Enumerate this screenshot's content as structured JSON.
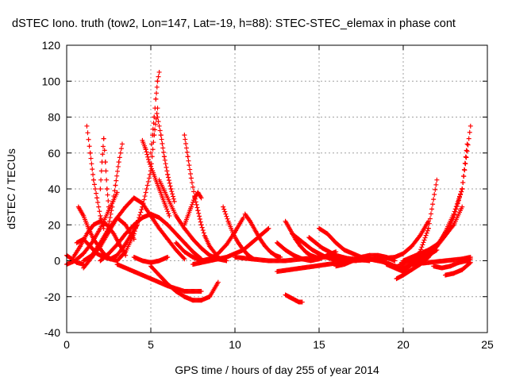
{
  "chart_data": {
    "type": "scatter",
    "title": "dSTEC Iono. truth (tow2, Lon=147, Lat=-19, h=88): STEC-STEC_elemax in phase cont",
    "xlabel": "GPS time / hours of day 255 of year 2014",
    "ylabel": "dSTEC  / TECUs",
    "xlim": [
      0,
      25
    ],
    "ylim": [
      -40,
      120
    ],
    "xticks": [
      "0",
      "5",
      "10",
      "15",
      "20",
      "25"
    ],
    "yticks": [
      "-40",
      "-20",
      "0",
      "20",
      "40",
      "60",
      "80",
      "100",
      "120"
    ],
    "grid": true,
    "marker": "plus",
    "color": "#ff0000",
    "series": [
      {
        "x": [
          0.0,
          0.3,
          0.6,
          1.0
        ],
        "y": [
          3,
          1,
          -1,
          -2
        ]
      },
      {
        "x": [
          0.0,
          0.5,
          1.0,
          1.5,
          2.0,
          2.5,
          3.0
        ],
        "y": [
          -2,
          0,
          4,
          10,
          18,
          28,
          38
        ]
      },
      {
        "x": [
          0.4,
          0.8,
          1.2,
          1.6,
          2.0,
          2.4,
          2.8,
          3.2,
          3.5
        ],
        "y": [
          2,
          8,
          15,
          20,
          22,
          20,
          15,
          8,
          3
        ]
      },
      {
        "x": [
          0.6,
          1.0,
          1.4,
          1.8,
          2.2,
          2.6,
          3.0,
          3.4,
          3.8,
          4.2
        ],
        "y": [
          10,
          12,
          8,
          4,
          2,
          1,
          3,
          8,
          14,
          20
        ]
      },
      {
        "x": [
          0.7,
          1.0,
          1.3,
          1.6,
          1.9,
          2.2,
          2.6,
          3.0
        ],
        "y": [
          30,
          25,
          18,
          12,
          8,
          4,
          1,
          0
        ]
      },
      {
        "x": [
          1.2,
          1.4,
          1.6,
          1.8,
          2.0,
          2.2
        ],
        "y": [
          75,
          60,
          45,
          35,
          25,
          18
        ]
      },
      {
        "x": [
          1.0,
          1.5,
          2.0,
          2.5,
          3.0,
          3.5,
          4.0
        ],
        "y": [
          0,
          3,
          10,
          18,
          24,
          20,
          12
        ]
      },
      {
        "x": [
          2.0,
          2.1,
          2.2,
          2.3,
          2.4,
          2.5
        ],
        "y": [
          40,
          55,
          68,
          55,
          40,
          30
        ]
      },
      {
        "x": [
          2.5,
          2.7,
          2.9,
          3.1,
          3.3
        ],
        "y": [
          20,
          30,
          42,
          55,
          65
        ]
      },
      {
        "x": [
          1.0,
          1.5,
          2.0,
          2.5,
          3.0,
          3.5,
          4.0,
          4.5,
          5.0,
          5.5,
          6.0,
          6.5,
          7.0
        ],
        "y": [
          -4,
          2,
          8,
          16,
          24,
          30,
          35,
          32,
          25,
          18,
          12,
          6,
          1
        ]
      },
      {
        "x": [
          2.0,
          2.5,
          3.0,
          3.5,
          4.0,
          4.5,
          5.0,
          5.5,
          6.0,
          6.5,
          7.0,
          7.5,
          8.0
        ],
        "y": [
          0,
          4,
          9,
          15,
          20,
          24,
          26,
          24,
          20,
          15,
          10,
          5,
          1
        ]
      },
      {
        "x": [
          4.5,
          4.7,
          4.9,
          5.1,
          5.3,
          5.5,
          5.7,
          5.9,
          6.1
        ],
        "y": [
          67,
          62,
          55,
          50,
          45,
          40,
          35,
          30,
          25
        ]
      },
      {
        "x": [
          5.0,
          5.1,
          5.2,
          5.3,
          5.4,
          5.5
        ],
        "y": [
          60,
          70,
          80,
          90,
          100,
          105
        ]
      },
      {
        "x": [
          3.0,
          3.5,
          4.0,
          4.5,
          5.0,
          5.2,
          5.4
        ],
        "y": [
          0,
          5,
          15,
          30,
          50,
          70,
          85
        ]
      },
      {
        "x": [
          5.4,
          5.6,
          5.8,
          6.0,
          6.2,
          6.4
        ],
        "y": [
          80,
          70,
          58,
          48,
          40,
          33
        ]
      },
      {
        "x": [
          5.5,
          6.0,
          6.5,
          7.0,
          7.5,
          8.0,
          8.5,
          9.0,
          9.5
        ],
        "y": [
          45,
          35,
          25,
          18,
          12,
          7,
          3,
          1,
          0
        ]
      },
      {
        "x": [
          7.0,
          7.2,
          7.4,
          7.6,
          7.8,
          8.0,
          8.2,
          8.5,
          9.0
        ],
        "y": [
          70,
          58,
          46,
          36,
          28,
          20,
          14,
          8,
          2
        ]
      },
      {
        "x": [
          6.5,
          7.0,
          7.5,
          8.0,
          8.5,
          9.0,
          9.5,
          10.0,
          10.5
        ],
        "y": [
          10,
          5,
          2,
          0,
          1,
          4,
          9,
          16,
          24
        ]
      },
      {
        "x": [
          3.0,
          4.0,
          5.0,
          6.0,
          7.0,
          7.5,
          8.0
        ],
        "y": [
          -2,
          -6,
          -10,
          -14,
          -17,
          -17,
          -17
        ]
      },
      {
        "x": [
          5.0,
          5.5,
          6.0,
          6.5,
          7.0,
          7.5,
          8.0,
          8.5,
          9.0
        ],
        "y": [
          -3,
          -8,
          -13,
          -17,
          -20,
          -22,
          -22,
          -20,
          -12
        ]
      },
      {
        "x": [
          7.0,
          7.2,
          7.4,
          7.6,
          7.8,
          8.0
        ],
        "y": [
          20,
          25,
          30,
          35,
          38,
          35
        ]
      },
      {
        "x": [
          9.3,
          9.6,
          9.9,
          10.2,
          10.5,
          10.8,
          11.1
        ],
        "y": [
          30,
          22,
          15,
          10,
          6,
          3,
          1
        ]
      },
      {
        "x": [
          10.6,
          10.9,
          11.2,
          11.5,
          11.8,
          12.1,
          12.4,
          12.7
        ],
        "y": [
          26,
          22,
          17,
          12,
          8,
          5,
          3,
          2
        ]
      },
      {
        "x": [
          7.5,
          8.5,
          9.5,
          10.5,
          11.0,
          11.5,
          12.0
        ],
        "y": [
          -2,
          0,
          2,
          6,
          10,
          14,
          18
        ]
      },
      {
        "x": [
          10.0,
          11.0,
          12.0,
          13.0,
          14.0,
          15.0,
          16.0,
          17.0,
          18.0
        ],
        "y": [
          2,
          1,
          0,
          0,
          1,
          2,
          2,
          1,
          0
        ]
      },
      {
        "x": [
          12.5,
          13.0,
          13.5,
          14.0,
          14.5,
          15.0,
          15.5,
          16.0
        ],
        "y": [
          10,
          6,
          3,
          1,
          0,
          1,
          3,
          5
        ]
      },
      {
        "x": [
          13.0,
          13.3,
          13.6,
          13.9,
          14.2,
          14.5,
          14.8
        ],
        "y": [
          22,
          17,
          12,
          8,
          5,
          3,
          2
        ]
      },
      {
        "x": [
          13.4,
          13.8,
          14.2,
          14.6,
          15.0,
          15.4,
          15.8,
          16.2,
          16.6
        ],
        "y": [
          15,
          12,
          9,
          6,
          4,
          2,
          1,
          0,
          -1
        ]
      },
      {
        "x": [
          14.4,
          14.8,
          15.2,
          15.6,
          16.0,
          16.4,
          16.8,
          17.2
        ],
        "y": [
          13,
          10,
          7,
          5,
          3,
          2,
          1,
          0
        ]
      },
      {
        "x": [
          15.0,
          15.5,
          16.0,
          16.5,
          17.0,
          17.5,
          18.0,
          18.5
        ],
        "y": [
          18,
          15,
          10,
          6,
          4,
          2,
          1,
          0
        ]
      },
      {
        "x": [
          16.0,
          16.5,
          17.0,
          17.5,
          18.0,
          18.5,
          19.0,
          19.5
        ],
        "y": [
          -3,
          -2,
          0,
          2,
          3,
          3,
          2,
          0
        ]
      },
      {
        "x": [
          17.5,
          18.0,
          18.5,
          19.0,
          19.5,
          20.0,
          20.5,
          21.0,
          21.5,
          22.0
        ],
        "y": [
          2,
          1,
          0,
          -1,
          -3,
          -4,
          -2,
          0,
          3,
          6
        ]
      },
      {
        "x": [
          12.5,
          14.0,
          15.5,
          17.0,
          18.5,
          19.5,
          20.0,
          20.5,
          21.0,
          21.5
        ],
        "y": [
          -6,
          -4,
          -2,
          0,
          1,
          2,
          4,
          8,
          14,
          22
        ]
      },
      {
        "x": [
          19.0,
          19.5,
          20.0,
          20.5,
          21.0,
          21.5,
          22.0
        ],
        "y": [
          -2,
          -4,
          -6,
          -2,
          5,
          18,
          45
        ]
      },
      {
        "x": [
          19.6,
          20.0,
          20.5,
          21.0,
          21.5,
          22.0,
          22.5,
          23.0,
          23.5,
          24.0
        ],
        "y": [
          -10,
          -8,
          -5,
          -2,
          2,
          8,
          16,
          26,
          40,
          75
        ]
      },
      {
        "x": [
          19.8,
          20.5,
          21.0,
          21.5,
          22.0,
          22.5,
          23.0,
          23.5,
          23.8
        ],
        "y": [
          -2,
          0,
          2,
          4,
          8,
          14,
          24,
          40,
          65
        ]
      },
      {
        "x": [
          20.0,
          20.5,
          21.0,
          21.5,
          22.0,
          22.5,
          23.0,
          23.5
        ],
        "y": [
          0,
          2,
          4,
          6,
          9,
          14,
          20,
          30
        ]
      },
      {
        "x": [
          21.8,
          22.3,
          22.8,
          23.3,
          23.8,
          24.0
        ],
        "y": [
          -3,
          -4,
          -3,
          -1,
          0,
          1
        ]
      },
      {
        "x": [
          22.5,
          23.0,
          23.5,
          24.0
        ],
        "y": [
          -8,
          -7,
          -5,
          -1
        ]
      },
      {
        "x": [
          13.0,
          13.2,
          13.4,
          13.6,
          13.8,
          14.0
        ],
        "y": [
          -19,
          -20,
          -21,
          -22,
          -23,
          -23
        ]
      },
      {
        "x": [
          4.0,
          4.5,
          5.0,
          5.5,
          6.0
        ],
        "y": [
          2,
          0,
          -1,
          0,
          2
        ]
      },
      {
        "x": [
          20.5,
          21.5,
          22.5,
          23.5,
          24.0
        ],
        "y": [
          -2,
          -1,
          0,
          1,
          2
        ]
      }
    ]
  }
}
